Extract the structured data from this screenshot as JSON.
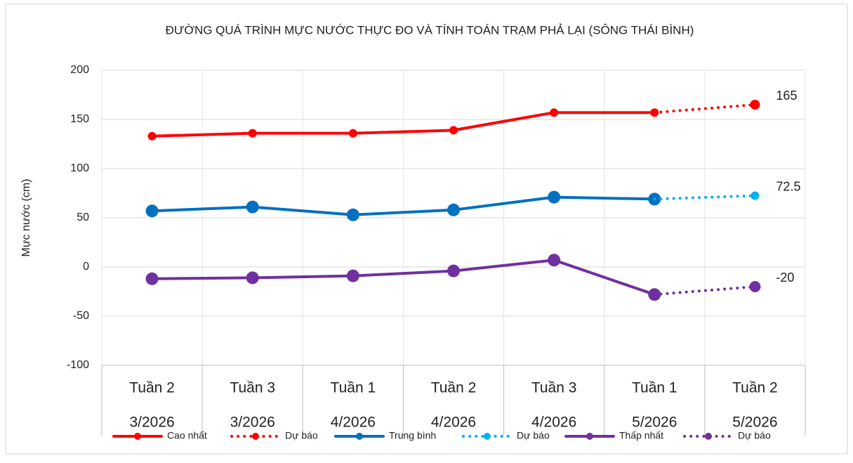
{
  "chart_data": {
    "type": "line",
    "title": "ĐƯỜNG QUÁ TRÌNH MỰC NƯỚC THỰC ĐO VÀ TÍNH TOÁN TRẠM  PHẢ LẠI (SÔNG THÁI BÌNH)",
    "ylabel": "Mực nước (cm)",
    "categories": [
      [
        "Tuần 2",
        "3/2026"
      ],
      [
        "Tuần 3",
        "3/2026"
      ],
      [
        "Tuần 1",
        "4/2026"
      ],
      [
        "Tuần 2",
        "4/2026"
      ],
      [
        "Tuần 3",
        "4/2026"
      ],
      [
        "Tuần 1",
        "5/2026"
      ],
      [
        "Tuần 2",
        "5/2026"
      ]
    ],
    "ylim": [
      -100,
      200
    ],
    "yticks": [
      -100,
      -50,
      0,
      50,
      100,
      150,
      200
    ],
    "grid": true,
    "legend": "bottom",
    "series": [
      {
        "name": "Cao nhất",
        "color": "#ff0000",
        "style": "solid",
        "values": [
          133,
          136,
          136,
          139,
          157,
          157,
          null
        ]
      },
      {
        "name": "Dự báo",
        "color": "#ff0000",
        "style": "dotted",
        "label_last": true,
        "values": [
          null,
          null,
          null,
          null,
          null,
          157,
          165
        ]
      },
      {
        "name": "Trung bình",
        "color": "#0070c0",
        "style": "solid",
        "values": [
          57,
          61,
          53,
          58,
          71,
          69,
          null
        ]
      },
      {
        "name": "Dự báo",
        "color": "#00b0f0",
        "style": "dotted",
        "label_last": true,
        "values": [
          null,
          null,
          null,
          null,
          null,
          69,
          72.5
        ]
      },
      {
        "name": "Thấp nhất",
        "color": "#7030a0",
        "style": "solid",
        "values": [
          -12,
          -11,
          -9,
          -4,
          7,
          -28,
          null
        ]
      },
      {
        "name": "Dự báo",
        "color": "#7030a0",
        "style": "dotted",
        "label_last": true,
        "values": [
          null,
          null,
          null,
          null,
          null,
          -28,
          -20
        ]
      }
    ]
  }
}
